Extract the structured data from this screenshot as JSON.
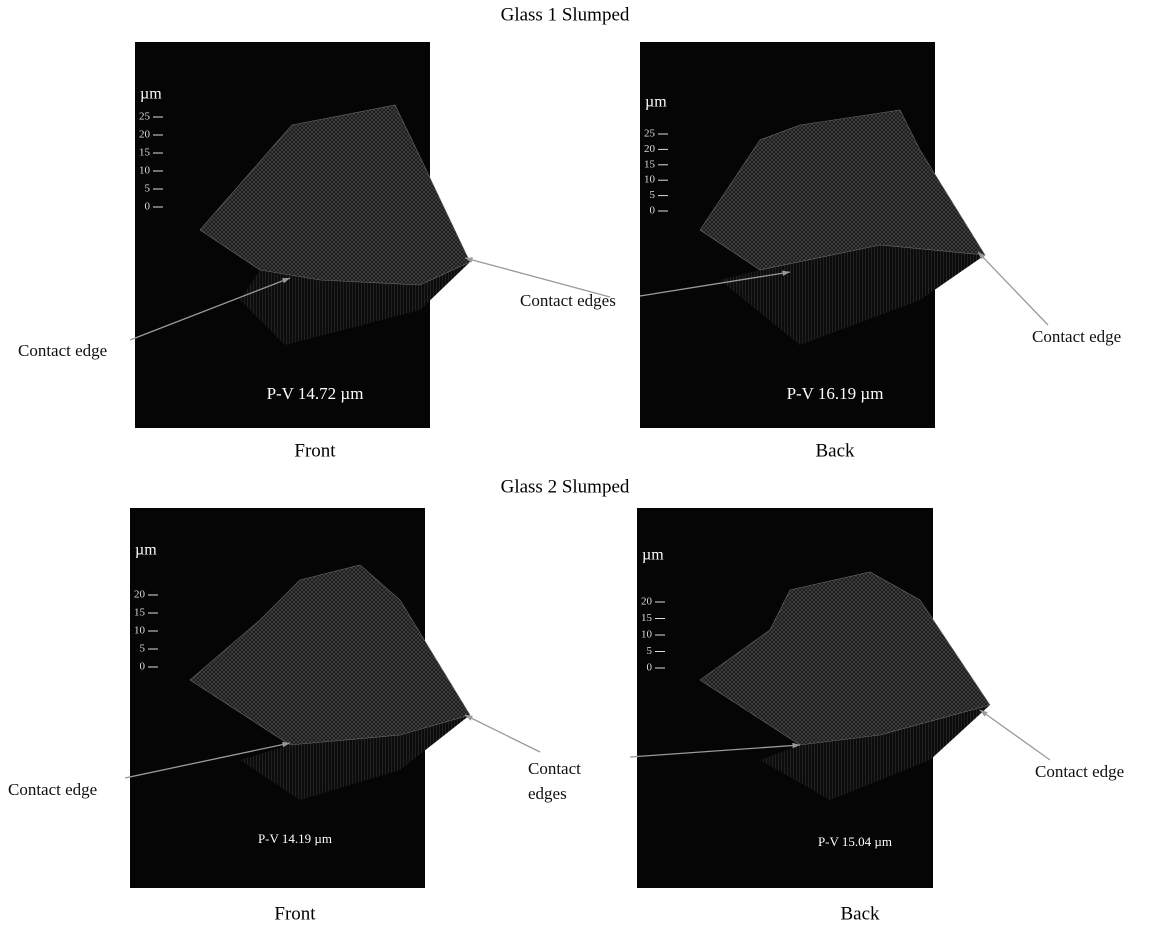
{
  "figures": [
    {
      "title": "Glass 1 Slumped",
      "panels": [
        {
          "unit": "µm",
          "ticks": [
            "25",
            "20",
            "15",
            "10",
            "5",
            "0"
          ],
          "pv": "P-V 14.72 µm",
          "caption": "Front"
        },
        {
          "unit": "µm",
          "ticks": [
            "25",
            "20",
            "15",
            "10",
            "5",
            "0"
          ],
          "pv": "P-V 16.19 µm",
          "caption": "Back"
        }
      ]
    },
    {
      "title": "Glass 2 Slumped",
      "panels": [
        {
          "unit": "µm",
          "ticks": [
            "20",
            "15",
            "10",
            "5",
            "0"
          ],
          "pv": "P-V 14.19 µm",
          "caption": "Front"
        },
        {
          "unit": "µm",
          "ticks": [
            "20",
            "15",
            "10",
            "5",
            "0"
          ],
          "pv": "P-V 15.04 µm",
          "caption": "Back"
        }
      ]
    }
  ],
  "annotations": [
    {
      "lines": [
        "Contact edge"
      ]
    },
    {
      "lines": [
        "Contact edges"
      ]
    },
    {
      "lines": [
        "Contact edge"
      ]
    },
    {
      "lines": [
        "Contact edge"
      ]
    },
    {
      "lines": [
        "Contact",
        "edges"
      ]
    },
    {
      "lines": [
        "Contact edge"
      ]
    }
  ]
}
